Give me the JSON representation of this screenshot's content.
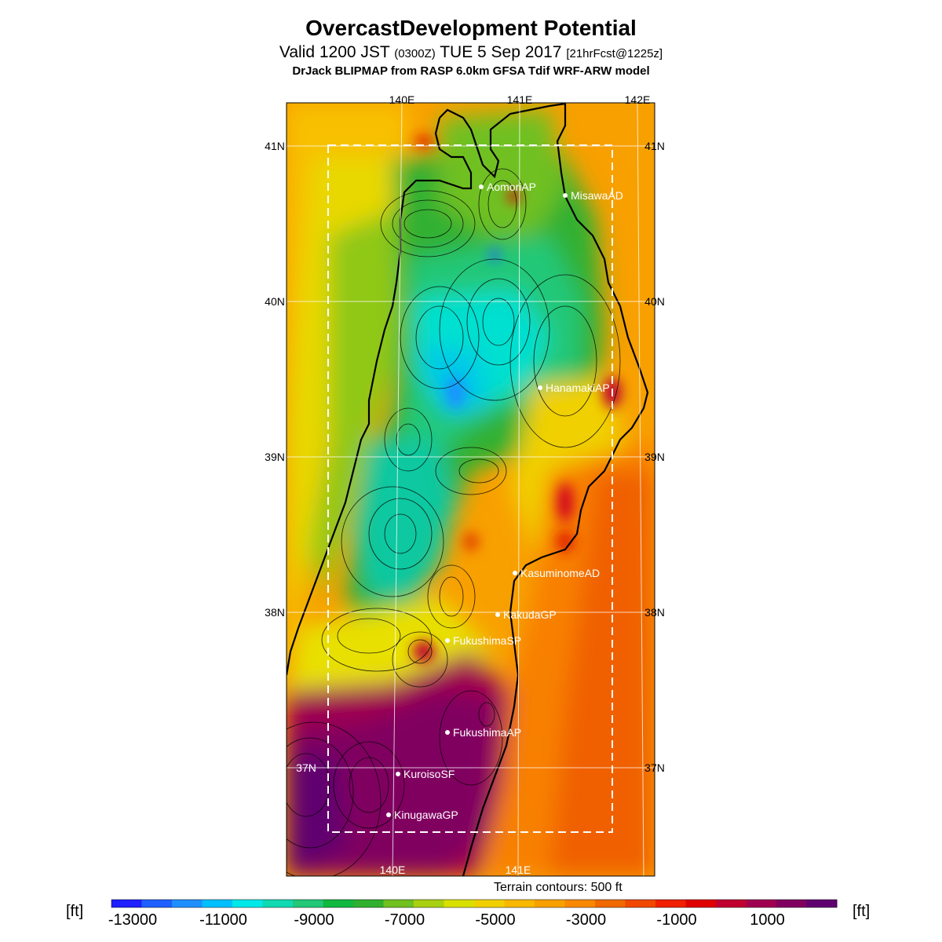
{
  "title": {
    "main": "OvercastDevelopment Potential",
    "valid_prefix": "Valid 1200 JST",
    "valid_utc": "(0300Z)",
    "valid_date": "TUE 5 Sep 2017",
    "forecast": "[21hrFcst@1225z]",
    "model": "DrJack BLIPMAP from RASP 6.0km GFSA Tdif WRF-ARW model"
  },
  "map": {
    "lon_labels_top": [
      "140E",
      "141E",
      "142E"
    ],
    "lon_labels_bottom": [
      "140E",
      "141E"
    ],
    "lat_labels_left": [
      "41N",
      "40N",
      "39N",
      "38N",
      "37N"
    ],
    "lat_labels_right": [
      "41N",
      "40N",
      "39N",
      "38N",
      "37N"
    ],
    "stations": [
      {
        "name": "AomoriAP"
      },
      {
        "name": "MisawaAD"
      },
      {
        "name": "HanamakiAP"
      },
      {
        "name": "KasuminomeAD"
      },
      {
        "name": "KakudaGP"
      },
      {
        "name": "FukushimaSP"
      },
      {
        "name": "FukushimaAP"
      },
      {
        "name": "KuroisoSF"
      },
      {
        "name": "KinugawaGP"
      }
    ],
    "terrain_note": "Terrain contours: 500 ft"
  },
  "colorbar": {
    "unit": "[ft]",
    "tick_labels": [
      "-13000",
      "-11000",
      "-9000",
      "-7000",
      "-5000",
      "-3000",
      "-1000",
      "1000"
    ],
    "colors": [
      "#1f1fff",
      "#1f5fff",
      "#1f8fff",
      "#00bfff",
      "#00e8e8",
      "#10d8b0",
      "#20c878",
      "#10b840",
      "#30b030",
      "#70c020",
      "#a8d010",
      "#d8e000",
      "#f0d000",
      "#f8b800",
      "#f8a000",
      "#f88800",
      "#f06800",
      "#f04800",
      "#f02000",
      "#e00000",
      "#c00030",
      "#a00050",
      "#800060",
      "#600070"
    ]
  }
}
